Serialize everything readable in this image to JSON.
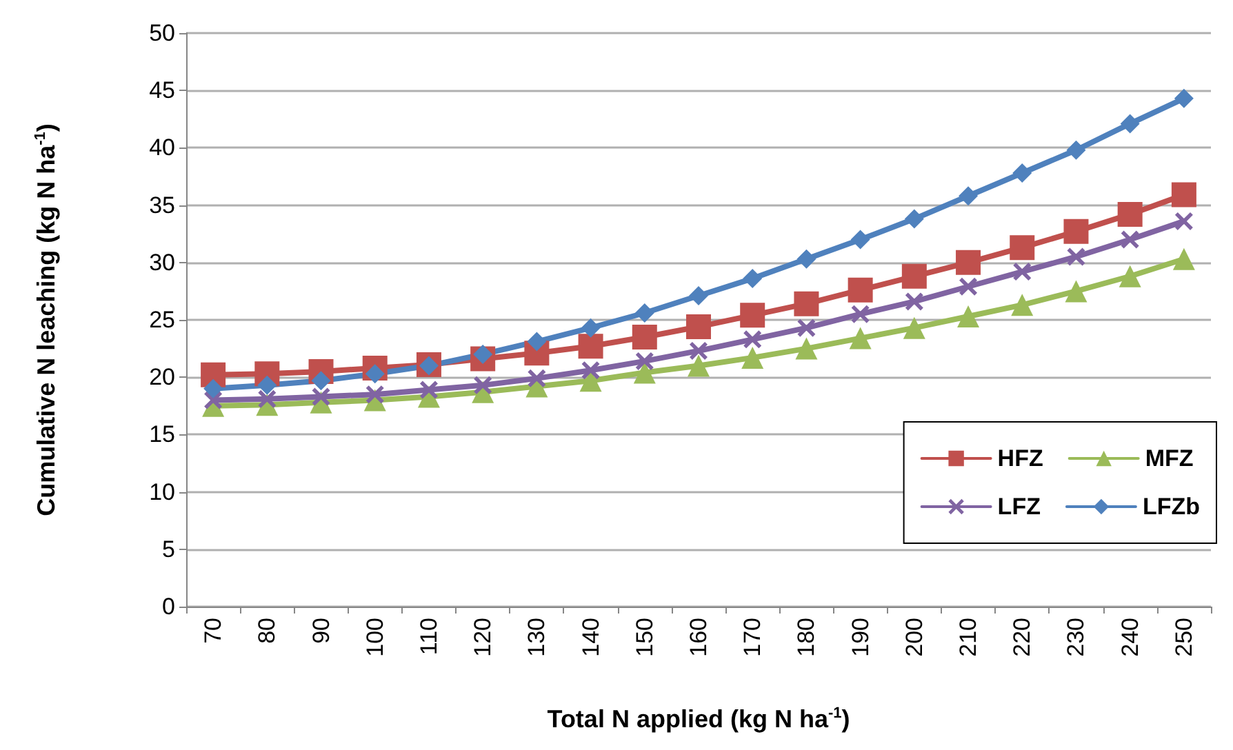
{
  "chart_data": {
    "type": "line",
    "xlabel": "Total N applied (kg N ha$^{-1}$)",
    "ylabel": "Cumulative N leaching (kg N ha$^{-1}$)",
    "categories": [
      "70",
      "80",
      "90",
      "100",
      "110",
      "120",
      "130",
      "140",
      "150",
      "160",
      "170",
      "180",
      "190",
      "200",
      "210",
      "220",
      "230",
      "240",
      "250"
    ],
    "ylim": [
      0,
      50
    ],
    "yticks": [
      0,
      5,
      10,
      15,
      20,
      25,
      30,
      35,
      40,
      45,
      50
    ],
    "grid": "y",
    "legend": "bottom right",
    "line_style": "solid",
    "series": [
      {
        "name": "HFZ",
        "color": "#c0504d",
        "marker": "square",
        "values": [
          20.2,
          20.3,
          20.5,
          20.8,
          21.1,
          21.6,
          22.1,
          22.7,
          23.5,
          24.4,
          25.4,
          26.4,
          27.6,
          28.8,
          30.0,
          31.3,
          32.7,
          34.2,
          35.9
        ]
      },
      {
        "name": "MFZ",
        "color": "#9bbb59",
        "marker": "triangle",
        "values": [
          17.5,
          17.6,
          17.8,
          18.0,
          18.3,
          18.7,
          19.2,
          19.7,
          20.4,
          21.0,
          21.7,
          22.5,
          23.4,
          24.3,
          25.3,
          26.3,
          27.5,
          28.8,
          30.3
        ]
      },
      {
        "name": "LFZ",
        "color": "#8064a2",
        "marker": "cross",
        "values": [
          18.0,
          18.1,
          18.3,
          18.5,
          18.9,
          19.3,
          19.9,
          20.6,
          21.4,
          22.3,
          23.3,
          24.3,
          25.5,
          26.6,
          27.9,
          29.2,
          30.5,
          32.0,
          33.6
        ]
      },
      {
        "name": "LFZb",
        "color": "#4f81bd",
        "marker": "diamond",
        "values": [
          19.0,
          19.3,
          19.7,
          20.3,
          21.0,
          22.0,
          23.1,
          24.3,
          25.6,
          27.1,
          28.6,
          30.3,
          32.0,
          33.8,
          35.8,
          37.8,
          39.8,
          42.1,
          44.3
        ]
      }
    ]
  }
}
